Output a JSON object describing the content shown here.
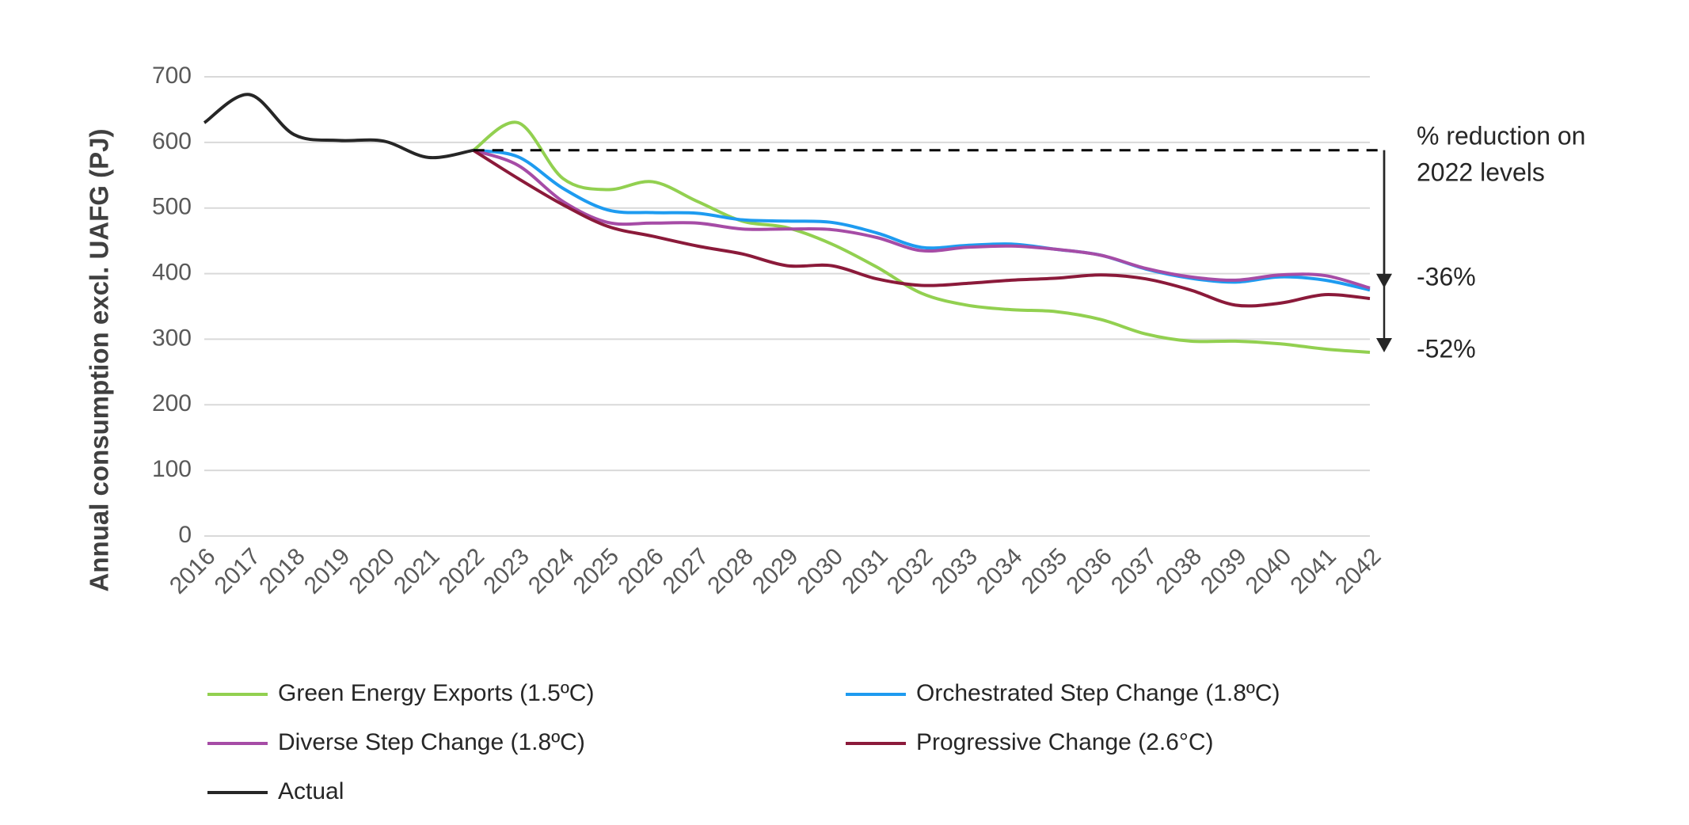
{
  "chart_data": {
    "type": "line",
    "y_label": "Annual consumption excl. UAFG (PJ)",
    "categories": [
      "2016",
      "2017",
      "2018",
      "2019",
      "2020",
      "2021",
      "2022",
      "2023",
      "2024",
      "2025",
      "2026",
      "2027",
      "2028",
      "2029",
      "2030",
      "2031",
      "2032",
      "2033",
      "2034",
      "2035",
      "2036",
      "2037",
      "2038",
      "2039",
      "2040",
      "2041",
      "2042"
    ],
    "ylim": [
      0,
      700
    ],
    "yticks": [
      0,
      100,
      200,
      300,
      400,
      500,
      600,
      700
    ],
    "grid": true,
    "series": [
      {
        "name": "Green Energy Exports (1.5ºC)",
        "color": "#92d050",
        "values": [
          null,
          null,
          null,
          null,
          null,
          null,
          588,
          630,
          545,
          528,
          540,
          510,
          480,
          470,
          445,
          410,
          370,
          352,
          345,
          342,
          330,
          308,
          297,
          297,
          293,
          285,
          280
        ]
      },
      {
        "name": "Orchestrated Step Change (1.8ºC)",
        "color": "#1e9bf0",
        "values": [
          null,
          null,
          null,
          null,
          null,
          null,
          588,
          578,
          530,
          497,
          493,
          492,
          482,
          480,
          478,
          462,
          440,
          443,
          445,
          437,
          428,
          407,
          393,
          387,
          395,
          390,
          375
        ]
      },
      {
        "name": "Diverse Step Change (1.8ºC)",
        "color": "#a64ca6",
        "values": [
          null,
          null,
          null,
          null,
          null,
          null,
          588,
          565,
          510,
          478,
          477,
          477,
          468,
          468,
          467,
          455,
          435,
          440,
          442,
          437,
          428,
          408,
          395,
          390,
          398,
          397,
          378
        ]
      },
      {
        "name": "Progressive Change (2.6°C)",
        "color": "#8b1a3a",
        "values": [
          null,
          null,
          null,
          null,
          null,
          null,
          588,
          545,
          505,
          472,
          457,
          442,
          430,
          412,
          412,
          392,
          382,
          385,
          390,
          393,
          398,
          392,
          375,
          352,
          355,
          368,
          362
        ]
      },
      {
        "name": "Actual",
        "color": "#262626",
        "values": [
          630,
          673,
          612,
          603,
          602,
          577,
          588,
          null,
          null,
          null,
          null,
          null,
          null,
          null,
          null,
          null,
          null,
          null,
          null,
          null,
          null,
          null,
          null,
          null,
          null,
          null,
          null
        ]
      }
    ],
    "annotation_lines": [
      "% reduction on",
      "2022 levels"
    ],
    "reduction_labels": [
      "-36%",
      "-52%"
    ]
  }
}
